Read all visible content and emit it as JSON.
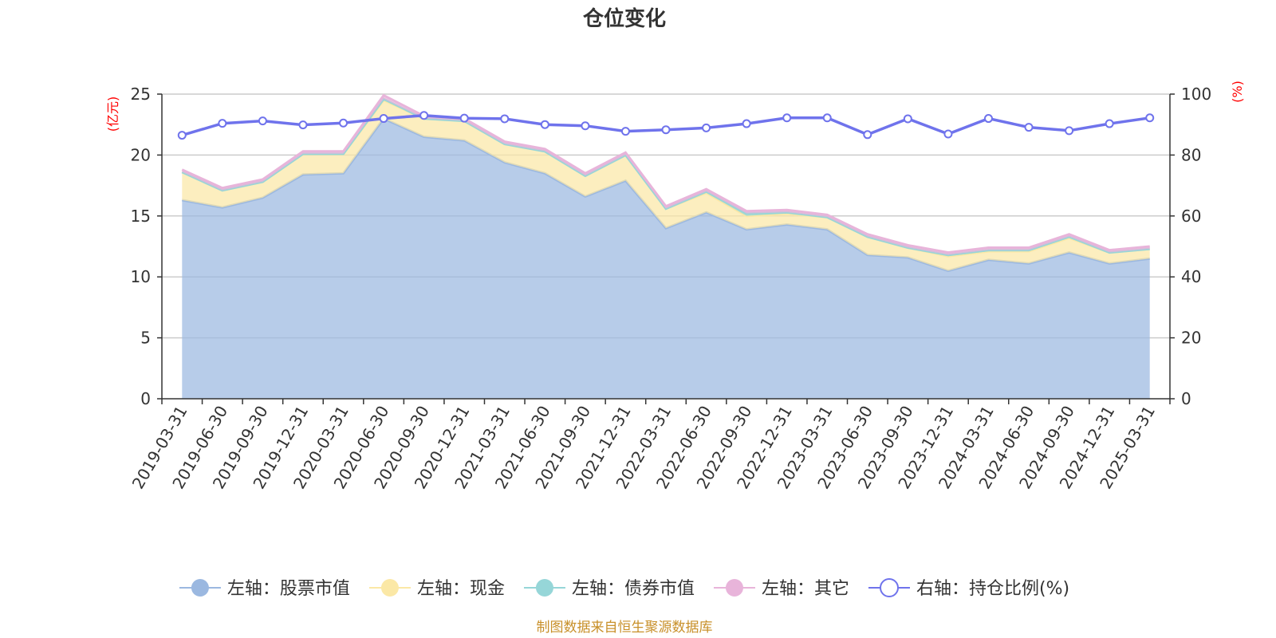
{
  "chart_data": {
    "type": "area",
    "title": "仓位变化",
    "left_unit": "(亿元)",
    "right_unit": "(%)",
    "source": "制图数据来自恒生聚源数据库",
    "categories": [
      "2019-03-31",
      "2019-06-30",
      "2019-09-30",
      "2019-12-31",
      "2020-03-31",
      "2020-06-30",
      "2020-09-30",
      "2020-12-31",
      "2021-03-31",
      "2021-06-30",
      "2021-09-30",
      "2021-12-31",
      "2022-03-31",
      "2022-06-30",
      "2022-09-30",
      "2022-12-31",
      "2023-03-31",
      "2023-06-30",
      "2023-09-30",
      "2023-12-31",
      "2024-03-31",
      "2024-06-30",
      "2024-09-30",
      "2024-12-31",
      "2025-03-31"
    ],
    "left_axis": {
      "min": 0,
      "max": 25,
      "ticks": [
        0,
        5,
        10,
        15,
        20,
        25
      ]
    },
    "right_axis": {
      "min": 0,
      "max": 100,
      "ticks": [
        0,
        20,
        40,
        60,
        80,
        100
      ]
    },
    "grid": true,
    "legend_position": "bottom",
    "stacked": true,
    "series": [
      {
        "name": "左轴：股票市值",
        "axis": "left",
        "color": "#9bb8e0",
        "values": [
          16.3,
          15.7,
          16.5,
          18.4,
          18.5,
          23.0,
          21.5,
          21.2,
          19.4,
          18.5,
          16.6,
          17.9,
          14.0,
          15.3,
          13.9,
          14.3,
          13.9,
          11.8,
          11.6,
          10.5,
          11.4,
          11.1,
          12.0,
          11.1,
          11.5
        ]
      },
      {
        "name": "左轴：现金",
        "axis": "left",
        "color": "#fbe8a6",
        "values": [
          2.3,
          1.4,
          1.3,
          1.7,
          1.6,
          1.5,
          1.5,
          1.6,
          1.5,
          1.8,
          1.7,
          2.1,
          1.6,
          1.6,
          1.1,
          0.9,
          1.0,
          1.5,
          0.8,
          1.2,
          0.7,
          1.0,
          1.2,
          0.9,
          0.8
        ]
      },
      {
        "name": "左轴：债券市值",
        "axis": "left",
        "color": "#96d6d8",
        "values": [
          0,
          0,
          0,
          0,
          0,
          0.1,
          0,
          0,
          0,
          0,
          0,
          0,
          0,
          0.1,
          0.2,
          0.1,
          0,
          0,
          0,
          0.1,
          0.1,
          0.1,
          0.1,
          0,
          0
        ]
      },
      {
        "name": "左轴：其它",
        "axis": "left",
        "color": "#e8b4da",
        "values": [
          0.2,
          0.2,
          0.2,
          0.2,
          0.2,
          0.3,
          0.2,
          0.2,
          0.2,
          0.2,
          0.2,
          0.2,
          0.2,
          0.2,
          0.2,
          0.2,
          0.2,
          0.2,
          0.2,
          0.2,
          0.2,
          0.2,
          0.2,
          0.2,
          0.2
        ]
      },
      {
        "name": "右轴：持仓比例(%)",
        "axis": "right",
        "color": "#6f73ec",
        "type": "line",
        "values": [
          86.5,
          90.4,
          91.2,
          89.9,
          90.5,
          92.0,
          93.0,
          92.1,
          91.9,
          90.0,
          89.6,
          87.8,
          88.3,
          88.9,
          90.3,
          92.2,
          92.2,
          86.7,
          91.9,
          86.9,
          92.0,
          89.1,
          88.0,
          90.3,
          92.2
        ]
      }
    ]
  }
}
